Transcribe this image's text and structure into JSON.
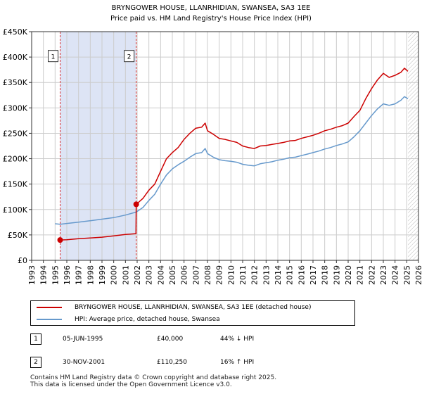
{
  "chart_data": {
    "type": "line",
    "title": "BRYNGOWER HOUSE, LLANRHIDIAN, SWANSEA, SA3 1EE",
    "subtitle": "Price paid vs. HM Land Registry's House Price Index (HPI)",
    "xlim": [
      1993,
      2026
    ],
    "ylim": [
      0,
      450000
    ],
    "x_ticks": [
      1993,
      1994,
      1995,
      1996,
      1997,
      1998,
      1999,
      2000,
      2001,
      2002,
      2003,
      2004,
      2005,
      2006,
      2007,
      2008,
      2009,
      2010,
      2011,
      2012,
      2013,
      2014,
      2015,
      2016,
      2017,
      2018,
      2019,
      2020,
      2021,
      2022,
      2023,
      2024,
      2025,
      2026
    ],
    "y_ticks": [
      {
        "value": 0,
        "label": "£0"
      },
      {
        "value": 50000,
        "label": "£50K"
      },
      {
        "value": 100000,
        "label": "£100K"
      },
      {
        "value": 150000,
        "label": "£150K"
      },
      {
        "value": 200000,
        "label": "£200K"
      },
      {
        "value": 250000,
        "label": "£250K"
      },
      {
        "value": 300000,
        "label": "£300K"
      },
      {
        "value": 350000,
        "label": "£350K"
      },
      {
        "value": 400000,
        "label": "£400K"
      },
      {
        "value": 450000,
        "label": "£450K"
      }
    ],
    "grid": true,
    "shaded_period": [
      1995.43,
      2001.92
    ],
    "future_hatch_from": 2025.1,
    "series": [
      {
        "name": "BRYNGOWER HOUSE, LLANRHIDIAN, SWANSEA, SA3 1EE (detached house)",
        "color": "#cc0000",
        "points": [
          [
            1995.43,
            40000
          ],
          [
            1996,
            40500
          ],
          [
            1997,
            42500
          ],
          [
            1998,
            44000
          ],
          [
            1999,
            45500
          ],
          [
            2000,
            48000
          ],
          [
            2001,
            51000
          ],
          [
            2001.9,
            52500
          ],
          [
            2001.92,
            110250
          ],
          [
            2002.5,
            122000
          ],
          [
            2003,
            138000
          ],
          [
            2003.5,
            150000
          ],
          [
            2004,
            175000
          ],
          [
            2004.5,
            200000
          ],
          [
            2005,
            212000
          ],
          [
            2005.5,
            222000
          ],
          [
            2006,
            238000
          ],
          [
            2006.5,
            250000
          ],
          [
            2007,
            260000
          ],
          [
            2007.5,
            262000
          ],
          [
            2007.8,
            270000
          ],
          [
            2008,
            255000
          ],
          [
            2008.5,
            248000
          ],
          [
            2009,
            240000
          ],
          [
            2009.5,
            238000
          ],
          [
            2010,
            235000
          ],
          [
            2010.5,
            232000
          ],
          [
            2011,
            225000
          ],
          [
            2011.5,
            222000
          ],
          [
            2012,
            220000
          ],
          [
            2012.5,
            225000
          ],
          [
            2013,
            226000
          ],
          [
            2013.5,
            228000
          ],
          [
            2014,
            230000
          ],
          [
            2014.5,
            232000
          ],
          [
            2015,
            235000
          ],
          [
            2015.5,
            236000
          ],
          [
            2016,
            240000
          ],
          [
            2016.5,
            243000
          ],
          [
            2017,
            246000
          ],
          [
            2017.5,
            250000
          ],
          [
            2018,
            255000
          ],
          [
            2018.5,
            258000
          ],
          [
            2019,
            262000
          ],
          [
            2019.5,
            265000
          ],
          [
            2020,
            270000
          ],
          [
            2020.5,
            283000
          ],
          [
            2021,
            295000
          ],
          [
            2021.5,
            318000
          ],
          [
            2022,
            338000
          ],
          [
            2022.5,
            355000
          ],
          [
            2023,
            368000
          ],
          [
            2023.5,
            360000
          ],
          [
            2024,
            364000
          ],
          [
            2024.5,
            370000
          ],
          [
            2024.8,
            378000
          ],
          [
            2025.1,
            372000
          ]
        ]
      },
      {
        "name": "HPI: Average price, detached house, Swansea",
        "color": "#6699cc",
        "points": [
          [
            1995,
            72000
          ],
          [
            1995.43,
            71000
          ],
          [
            1996,
            72500
          ],
          [
            1997,
            75000
          ],
          [
            1998,
            78000
          ],
          [
            1999,
            81000
          ],
          [
            2000,
            84000
          ],
          [
            2001,
            89000
          ],
          [
            2001.92,
            95000
          ],
          [
            2002.5,
            104000
          ],
          [
            2003,
            118000
          ],
          [
            2003.5,
            130000
          ],
          [
            2004,
            150000
          ],
          [
            2004.5,
            168000
          ],
          [
            2005,
            180000
          ],
          [
            2005.5,
            188000
          ],
          [
            2006,
            195000
          ],
          [
            2006.5,
            203000
          ],
          [
            2007,
            210000
          ],
          [
            2007.5,
            212000
          ],
          [
            2007.8,
            220000
          ],
          [
            2008,
            210000
          ],
          [
            2008.5,
            203000
          ],
          [
            2009,
            198000
          ],
          [
            2009.5,
            196000
          ],
          [
            2010,
            195000
          ],
          [
            2010.5,
            193000
          ],
          [
            2011,
            189000
          ],
          [
            2011.5,
            187000
          ],
          [
            2012,
            186000
          ],
          [
            2012.5,
            190000
          ],
          [
            2013,
            192000
          ],
          [
            2013.5,
            194000
          ],
          [
            2014,
            197000
          ],
          [
            2014.5,
            199000
          ],
          [
            2015,
            202000
          ],
          [
            2015.5,
            203000
          ],
          [
            2016,
            206000
          ],
          [
            2016.5,
            209000
          ],
          [
            2017,
            212000
          ],
          [
            2017.5,
            215000
          ],
          [
            2018,
            219000
          ],
          [
            2018.5,
            222000
          ],
          [
            2019,
            226000
          ],
          [
            2019.5,
            229000
          ],
          [
            2020,
            233000
          ],
          [
            2020.5,
            243000
          ],
          [
            2021,
            255000
          ],
          [
            2021.5,
            270000
          ],
          [
            2022,
            285000
          ],
          [
            2022.5,
            298000
          ],
          [
            2023,
            308000
          ],
          [
            2023.5,
            305000
          ],
          [
            2024,
            308000
          ],
          [
            2024.5,
            315000
          ],
          [
            2024.8,
            322000
          ],
          [
            2025.1,
            318000
          ]
        ]
      }
    ],
    "markers": [
      {
        "label": "1",
        "x": 1995.43,
        "y": 40000,
        "box_x": 1995.43
      },
      {
        "label": "2",
        "x": 2001.92,
        "y": 110250,
        "box_x": 2001.92
      }
    ],
    "marker_box_value": 402000
  },
  "legend": {
    "items": [
      {
        "label": "BRYNGOWER HOUSE, LLANRHIDIAN, SWANSEA, SA3 1EE (detached house)",
        "color": "#cc0000"
      },
      {
        "label": "HPI: Average price, detached house, Swansea",
        "color": "#6699cc"
      }
    ]
  },
  "transactions": [
    {
      "num": "1",
      "date": "05-JUN-1995",
      "price": "£40,000",
      "hpi": "44% ↓ HPI"
    },
    {
      "num": "2",
      "date": "30-NOV-2001",
      "price": "£110,250",
      "hpi": "16% ↑ HPI"
    }
  ],
  "footer": {
    "line1": "Contains HM Land Registry data © Crown copyright and database right 2025.",
    "line2": "This data is licensed under the Open Government Licence v3.0."
  }
}
